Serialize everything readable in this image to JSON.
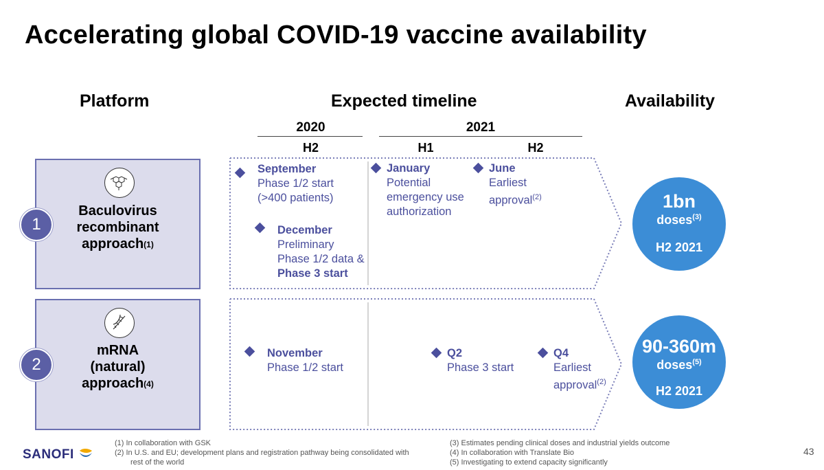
{
  "title": "Accelerating global COVID-19 vaccine availability",
  "columns": {
    "platform": "Platform",
    "timeline": "Expected timeline",
    "availability": "Availability"
  },
  "years": {
    "y2020": "2020",
    "y2021": "2021"
  },
  "halves": {
    "h2_2020": "H2",
    "h1_2021": "H1",
    "h2_2021": "H2"
  },
  "platforms": [
    {
      "number": "1",
      "line1": "Baculovirus",
      "line2": "recombinant",
      "line3": "approach",
      "ref": "(1)",
      "icon": "molecule-icon"
    },
    {
      "number": "2",
      "line1": "mRNA",
      "line2": "(natural)",
      "line3": "approach",
      "ref": "(4)",
      "icon": "dna-icon"
    }
  ],
  "events1": {
    "september": {
      "head": "September",
      "l1": "Phase 1/2 start",
      "l2": "(>400 patients)"
    },
    "december": {
      "head": "December",
      "l1": "Preliminary",
      "l2": "Phase 1/2 data &",
      "l3": "Phase 3 start"
    },
    "january": {
      "head": "January",
      "l1": "Potential",
      "l2": "emergency use",
      "l3": "authorization"
    },
    "june": {
      "head": "June",
      "l1": "Earliest",
      "l2": "approval",
      "ref": "(2)"
    }
  },
  "events2": {
    "november": {
      "head": "November",
      "l1": "Phase 1/2 start"
    },
    "q2": {
      "head": "Q2",
      "l1": "Phase 3 start"
    },
    "q4": {
      "head": "Q4",
      "l1": "Earliest",
      "l2": "approval",
      "ref": "(2)"
    }
  },
  "availability": [
    {
      "amount": "1bn",
      "unit": "doses",
      "ref": "(3)",
      "when": "H2 2021"
    },
    {
      "amount": "90-360m",
      "unit": "doses",
      "ref": "(5)",
      "when": "H2 2021"
    }
  ],
  "footnotes_left": [
    "(1)  In collaboration with GSK",
    "(2)  In U.S. and EU; development plans and registration pathway being consolidated with",
    "rest of the world"
  ],
  "footnotes_right": [
    "(3)  Estimates pending clinical doses and industrial yields outcome",
    "(4)  In collaboration with Translate Bio",
    "(5)  Investigating to extend capacity significantly"
  ],
  "logo": "SANOFI",
  "page_number": "43",
  "colors": {
    "accent": "#4b4f9d",
    "circle": "#3c8dd6",
    "box": "#dcdcec"
  }
}
